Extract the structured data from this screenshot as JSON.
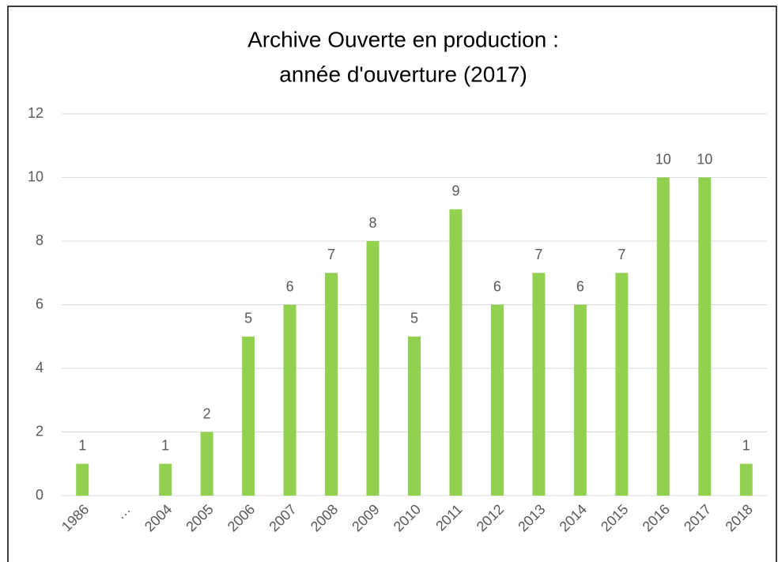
{
  "chart_data": {
    "type": "bar",
    "title": [
      "Archive Ouverte en production :",
      "année d'ouverture (2017)"
    ],
    "categories": [
      "1986",
      "…",
      "2004",
      "2005",
      "2006",
      "2007",
      "2008",
      "2009",
      "2010",
      "2011",
      "2012",
      "2013",
      "2014",
      "2015",
      "2016",
      "2017",
      "2018"
    ],
    "values": [
      1,
      null,
      1,
      2,
      5,
      6,
      7,
      8,
      5,
      9,
      6,
      7,
      6,
      7,
      10,
      10,
      1
    ],
    "color": "#92d050",
    "ylim": [
      0,
      12
    ],
    "yticks": [
      0,
      2,
      4,
      6,
      8,
      10,
      12
    ],
    "grid": true
  }
}
